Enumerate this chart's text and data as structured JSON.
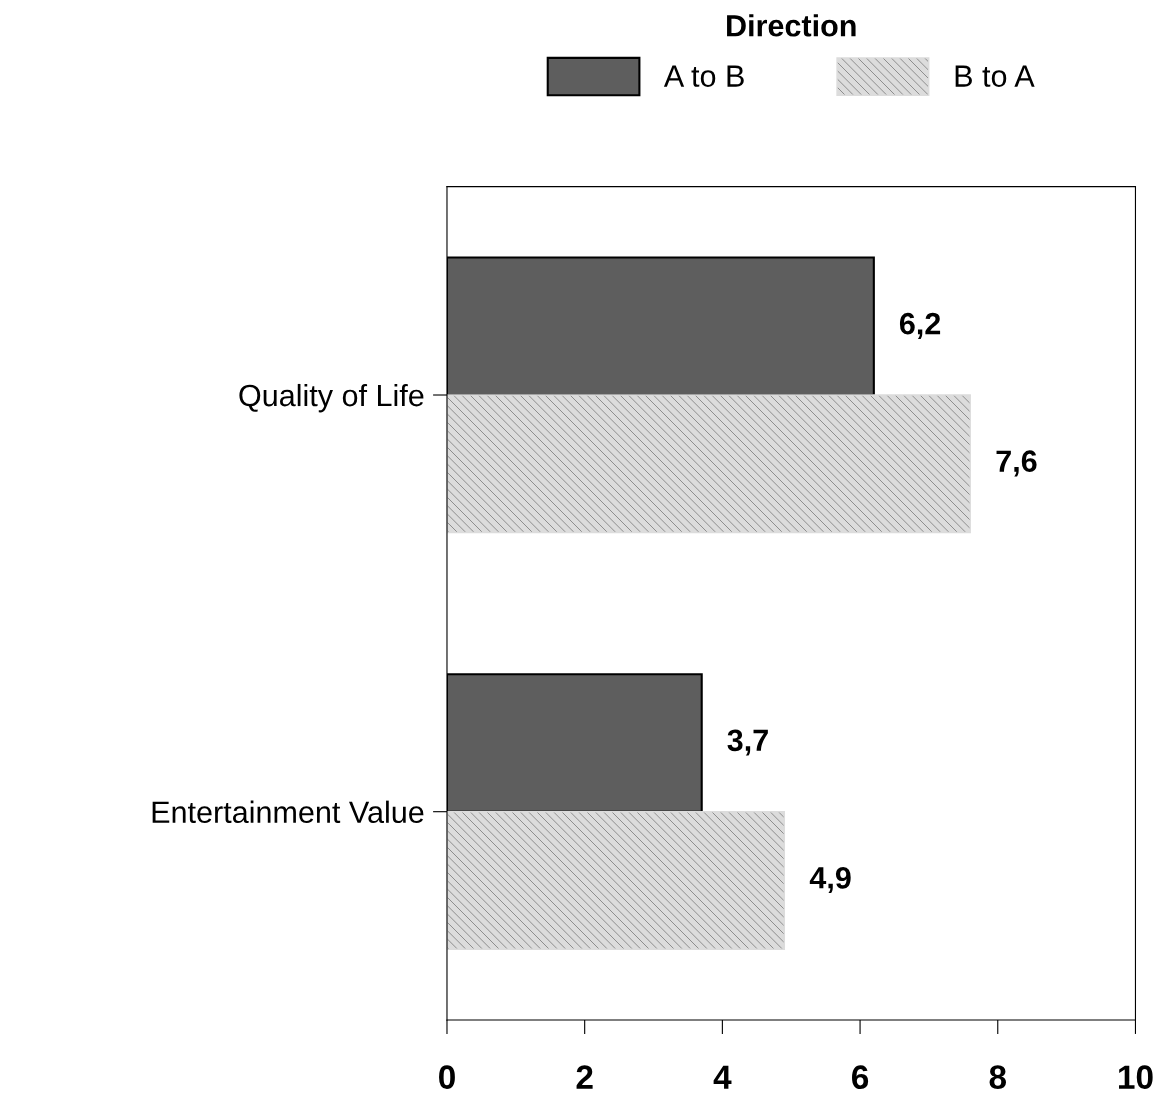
{
  "chart_data": {
    "type": "bar",
    "orientation": "horizontal",
    "legend_title": "Direction",
    "legend": "top",
    "categories": [
      "Quality of Life",
      "Entertainment Value"
    ],
    "series": [
      {
        "name": "A to B",
        "color": "#5e5e5e",
        "values": [
          6.2,
          3.7
        ],
        "value_labels": [
          "6,2",
          "3,7"
        ]
      },
      {
        "name": "B to A",
        "color": "#dcdcdc",
        "values": [
          7.6,
          4.9
        ],
        "value_labels": [
          "7,6",
          "4,9"
        ]
      }
    ],
    "xlim": [
      0,
      10
    ],
    "xticks": [
      0,
      2,
      4,
      6,
      8,
      10
    ],
    "grid": false
  }
}
